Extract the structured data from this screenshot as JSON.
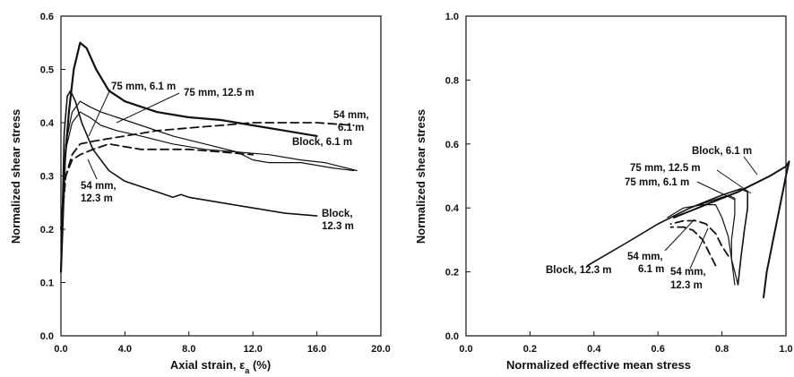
{
  "chart_data": [
    {
      "type": "line",
      "xlabel": "Axial strain, ε",
      "xlabel_sub": "a",
      "xlabel_suffix": " (%)",
      "ylabel": "Normalized shear stress",
      "xlim": [
        0,
        20
      ],
      "ylim": [
        0,
        0.6
      ],
      "xticks": [
        "0.0",
        "4.0",
        "8.0",
        "12.0",
        "16.0",
        "20.0"
      ],
      "yticks": [
        "0.0",
        "0.1",
        "0.2",
        "0.3",
        "0.4",
        "0.5",
        "0.6"
      ],
      "grid": false,
      "series": [
        {
          "name": "Block, 6.1 m",
          "style": "solid",
          "width": 2.2,
          "x": [
            0,
            0.25,
            0.5,
            0.8,
            1.2,
            1.6,
            2.2,
            3,
            4,
            5,
            6,
            8,
            10,
            12,
            14,
            16
          ],
          "y": [
            0.12,
            0.33,
            0.42,
            0.5,
            0.55,
            0.54,
            0.5,
            0.46,
            0.44,
            0.43,
            0.42,
            0.41,
            0.405,
            0.395,
            0.385,
            0.375
          ]
        },
        {
          "name": "Block, 12.3 m",
          "style": "solid",
          "width": 1.6,
          "x": [
            0,
            0.2,
            0.4,
            0.6,
            0.9,
            1.3,
            2,
            3,
            4,
            5,
            6,
            7,
            7.5,
            8,
            10,
            12,
            14,
            16
          ],
          "y": [
            0.12,
            0.38,
            0.45,
            0.46,
            0.44,
            0.4,
            0.35,
            0.31,
            0.29,
            0.28,
            0.27,
            0.26,
            0.265,
            0.26,
            0.25,
            0.24,
            0.23,
            0.225
          ]
        },
        {
          "name": "75 mm, 6.1 m",
          "style": "solid",
          "width": 1.2,
          "x": [
            0,
            0.3,
            0.7,
            1.2,
            1.8,
            2.5,
            3.5,
            5,
            7,
            9,
            11,
            13,
            15,
            16.5,
            18.5
          ],
          "y": [
            0.2,
            0.35,
            0.4,
            0.42,
            0.41,
            0.395,
            0.385,
            0.375,
            0.36,
            0.35,
            0.345,
            0.34,
            0.33,
            0.325,
            0.31
          ]
        },
        {
          "name": "75 mm, 12.5 m",
          "style": "solid",
          "width": 1.2,
          "x": [
            0,
            0.3,
            0.7,
            1.2,
            1.8,
            2.5,
            3.5,
            5,
            7,
            9,
            11,
            12,
            13,
            15,
            17,
            18.3
          ],
          "y": [
            0.2,
            0.36,
            0.42,
            0.44,
            0.43,
            0.42,
            0.41,
            0.395,
            0.375,
            0.36,
            0.345,
            0.33,
            0.325,
            0.325,
            0.315,
            0.31
          ]
        },
        {
          "name": "54 mm, 6.1 m",
          "style": "dashed",
          "width": 1.8,
          "x": [
            0,
            0.3,
            0.7,
            1.2,
            2,
            3,
            4,
            6,
            8,
            10,
            12,
            14,
            16,
            18.3
          ],
          "y": [
            0.2,
            0.3,
            0.34,
            0.36,
            0.365,
            0.37,
            0.375,
            0.385,
            0.39,
            0.395,
            0.4,
            0.4,
            0.4,
            0.395
          ]
        },
        {
          "name": "54 mm, 12.3 m",
          "style": "dashed",
          "width": 1.8,
          "x": [
            0,
            0.3,
            0.7,
            1.2,
            2,
            3,
            4,
            5,
            6,
            8,
            10,
            12
          ],
          "y": [
            0.2,
            0.3,
            0.33,
            0.34,
            0.35,
            0.36,
            0.355,
            0.35,
            0.35,
            0.35,
            0.345,
            0.34
          ]
        }
      ],
      "annotations": [
        {
          "lines": [
            "75 mm, 6.1 m"
          ]
        },
        {
          "lines": [
            "75 mm, 12.5 m"
          ]
        },
        {
          "lines": [
            "54 mm,",
            "6.1 m"
          ]
        },
        {
          "lines": [
            "Block, 6.1 m"
          ]
        },
        {
          "lines": [
            "54 mm,",
            "12.3 m"
          ]
        },
        {
          "lines": [
            "Block,",
            "12.3 m"
          ]
        }
      ]
    },
    {
      "type": "line",
      "xlabel": "Normalized effective mean stress",
      "ylabel": "Normalized shear stress",
      "xlim": [
        0,
        1.0
      ],
      "ylim": [
        0,
        1.0
      ],
      "xticks": [
        "0.0",
        "0.2",
        "0.4",
        "0.6",
        "0.8",
        "1.0"
      ],
      "yticks": [
        "0.0",
        "0.2",
        "0.4",
        "0.6",
        "0.8",
        "1.0"
      ],
      "grid": false,
      "series": [
        {
          "name": "Block, 6.1 m",
          "style": "solid",
          "width": 2.0,
          "x": [
            0.93,
            0.94,
            0.96,
            0.98,
            1.0,
            1.01,
            1.0,
            0.95,
            0.85,
            0.75,
            0.65
          ],
          "y": [
            0.12,
            0.2,
            0.3,
            0.4,
            0.5,
            0.545,
            0.53,
            0.5,
            0.45,
            0.41,
            0.37
          ]
        },
        {
          "name": "Block, 12.3 m",
          "style": "solid",
          "width": 1.6,
          "x": [
            0.85,
            0.86,
            0.87,
            0.88,
            0.88,
            0.86,
            0.8,
            0.7,
            0.6,
            0.5,
            0.38
          ],
          "y": [
            0.16,
            0.25,
            0.33,
            0.4,
            0.45,
            0.46,
            0.44,
            0.4,
            0.35,
            0.29,
            0.22
          ]
        },
        {
          "name": "75 mm, 12.5 m",
          "style": "solid",
          "width": 1.2,
          "x": [
            0.85,
            0.83,
            0.83,
            0.84,
            0.84,
            0.82,
            0.76,
            0.7,
            0.64
          ],
          "y": [
            0.16,
            0.24,
            0.3,
            0.38,
            0.43,
            0.44,
            0.42,
            0.4,
            0.37
          ]
        },
        {
          "name": "75 mm, 6.1 m",
          "style": "solid",
          "width": 1.2,
          "x": [
            0.84,
            0.83,
            0.82,
            0.8,
            0.78,
            0.74,
            0.68,
            0.63
          ],
          "y": [
            0.16,
            0.24,
            0.31,
            0.37,
            0.41,
            0.41,
            0.4,
            0.37
          ]
        },
        {
          "name": "54 mm, 6.1 m",
          "style": "dashed",
          "width": 1.8,
          "x": [
            0.82,
            0.8,
            0.78,
            0.75,
            0.72,
            0.68,
            0.64
          ],
          "y": [
            0.25,
            0.28,
            0.32,
            0.35,
            0.36,
            0.36,
            0.35
          ]
        },
        {
          "name": "54 mm, 12.3 m",
          "style": "dashed",
          "width": 1.8,
          "x": [
            0.78,
            0.76,
            0.74,
            0.71,
            0.68,
            0.64
          ],
          "y": [
            0.22,
            0.26,
            0.3,
            0.33,
            0.34,
            0.34
          ]
        }
      ],
      "annotations": [
        {
          "lines": [
            "Block, 6.1 m"
          ]
        },
        {
          "lines": [
            "75 mm, 12.5 m"
          ]
        },
        {
          "lines": [
            "75 mm, 6.1 m"
          ]
        },
        {
          "lines": [
            "54 mm,",
            "6.1 m"
          ]
        },
        {
          "lines": [
            "54 mm,",
            "12.3 m"
          ]
        },
        {
          "lines": [
            "Block, 12.3 m"
          ]
        }
      ]
    }
  ]
}
